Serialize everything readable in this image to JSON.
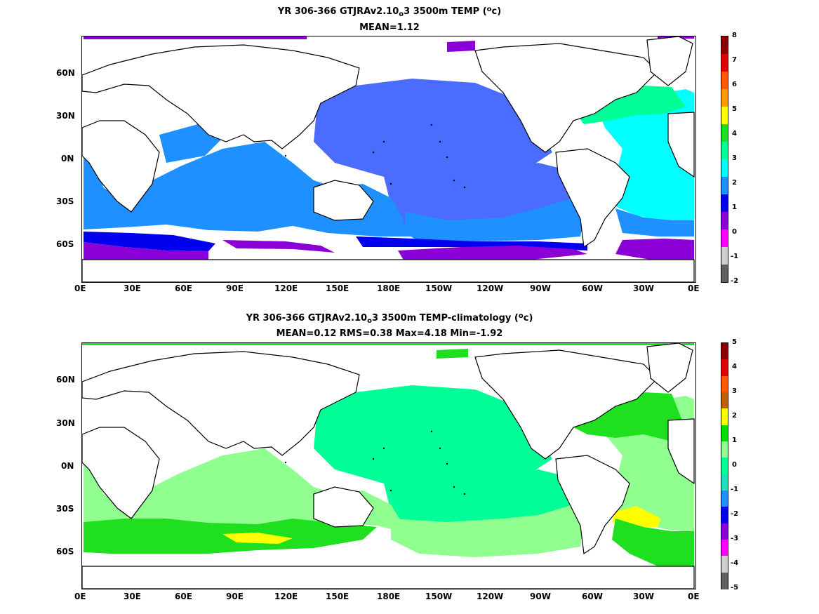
{
  "panels": [
    {
      "title_line1": {
        "pre": "YR 306-366 GTJRAv2.10",
        "sub": "o",
        "mid": "3 3500m TEMP (",
        "sup": "o",
        "post": "c)"
      },
      "title_line2": "MEAN=1.12",
      "x_ticks": [
        "0E",
        "30E",
        "60E",
        "90E",
        "120E",
        "150E",
        "180E",
        "150W",
        "120W",
        "90W",
        "60W",
        "30W",
        "0E"
      ],
      "y_ticks": [
        "60N",
        "30N",
        "0N",
        "30S",
        "60S"
      ],
      "colorbar": {
        "labels": [
          "8",
          "7",
          "6",
          "5",
          "4",
          "3",
          "2",
          "1",
          "0",
          "-1",
          "-2"
        ],
        "colors": [
          "#8b0000",
          "#e00000",
          "#ff5a00",
          "#ff9a00",
          "#ffff00",
          "#1ee01e",
          "#00ff96",
          "#00ffff",
          "#1e90ff",
          "#0000ee",
          "#8b00d6",
          "#ff00ff",
          "#cfcfcf",
          "#606060"
        ]
      },
      "field_colors": {
        "atlantic": "#00ffff",
        "atlantic_north": "#00ff96",
        "indian": "#1e90ff",
        "pacific": "#4a6cff",
        "southern": "#8b00d6",
        "southern_blue": "#0000ee"
      }
    },
    {
      "title_line1": {
        "pre": "YR 306-366 GTJRAv2.10",
        "sub": "o",
        "mid": "3 3500m TEMP-climatology (",
        "sup": "o",
        "post": "c)"
      },
      "title_line2": "MEAN=0.12   RMS=0.38   Max=4.18   Min=-1.92",
      "x_ticks": [
        "0E",
        "30E",
        "60E",
        "90E",
        "120E",
        "150E",
        "180E",
        "150W",
        "120W",
        "90W",
        "60W",
        "30W",
        "0E"
      ],
      "y_ticks": [
        "60N",
        "30N",
        "0N",
        "30S",
        "60S"
      ],
      "colorbar": {
        "labels": [
          "5",
          "4",
          "3",
          "2",
          "1",
          "0",
          "-1",
          "-2",
          "-3",
          "-4",
          "-5"
        ],
        "colors": [
          "#8b0000",
          "#e00000",
          "#ff5a00",
          "#c06000",
          "#ffff00",
          "#00e000",
          "#90ff90",
          "#00ff96",
          "#1ee0c0",
          "#1e90ff",
          "#0000ee",
          "#8b00d6",
          "#ff00ff",
          "#cfcfcf",
          "#606060"
        ]
      },
      "field_colors": {
        "pacific": "#00ff96",
        "indian": "#90ff90",
        "southern_green": "#1ee01e",
        "atlantic": "#90ff90",
        "atlantic_north": "#1ee01e",
        "yellow": "#ffff00"
      }
    }
  ]
}
